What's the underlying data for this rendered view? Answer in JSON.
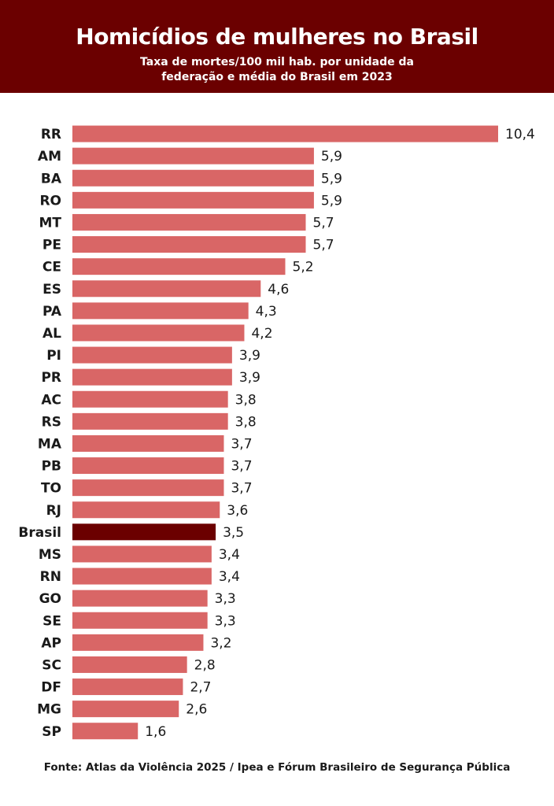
{
  "header": {
    "title": "Homicídios de mulheres no Brasil",
    "subtitle_line1": "Taxa de mortes/100 mil hab. por unidade da",
    "subtitle_line2": "federação e média do Brasil em 2023"
  },
  "footer": {
    "source": "Fonte: Atlas da Violência 2025 / Ipea e Fórum Brasileiro de Segurança Pública"
  },
  "colors": {
    "header_bg": "#6b0000",
    "bar": "#d96666",
    "highlight_bar": "#6b0000"
  },
  "chart_data": {
    "type": "bar",
    "orientation": "horizontal",
    "title": "Homicídios de mulheres no Brasil",
    "subtitle": "Taxa de mortes/100 mil hab. por unidade da federação e média do Brasil em 2023",
    "xlabel": "",
    "ylabel": "",
    "xlim": [
      0,
      10.4
    ],
    "grid": false,
    "highlight": "Brasil",
    "categories": [
      "RR",
      "AM",
      "BA",
      "RO",
      "MT",
      "PE",
      "CE",
      "ES",
      "PA",
      "AL",
      "PI",
      "PR",
      "AC",
      "RS",
      "MA",
      "PB",
      "TO",
      "RJ",
      "Brasil",
      "MS",
      "RN",
      "GO",
      "SE",
      "AP",
      "SC",
      "DF",
      "MG",
      "SP"
    ],
    "values": [
      10.4,
      5.9,
      5.9,
      5.9,
      5.7,
      5.7,
      5.2,
      4.6,
      4.3,
      4.2,
      3.9,
      3.9,
      3.8,
      3.8,
      3.7,
      3.7,
      3.7,
      3.6,
      3.5,
      3.4,
      3.4,
      3.3,
      3.3,
      3.2,
      2.8,
      2.7,
      2.6,
      1.6
    ],
    "value_labels": [
      "10,4",
      "5,9",
      "5,9",
      "5,9",
      "5,7",
      "5,7",
      "5,2",
      "4,6",
      "4,3",
      "4,2",
      "3,9",
      "3,9",
      "3,8",
      "3,8",
      "3,7",
      "3,7",
      "3,7",
      "3,6",
      "3,5",
      "3,4",
      "3,4",
      "3,3",
      "3,3",
      "3,2",
      "2,8",
      "2,7",
      "2,6",
      "1,6"
    ]
  }
}
